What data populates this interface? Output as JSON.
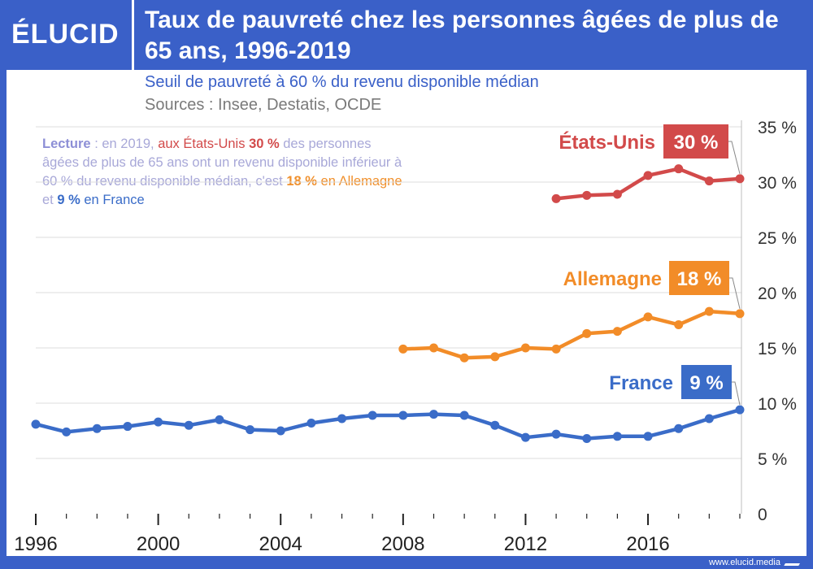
{
  "logo": {
    "text": "ÉLUCID"
  },
  "header": {
    "title": "Taux de pauvreté chez les personnes âgées de plus de 65 ans, 1996-2019"
  },
  "subtitle": "Seuil de pauvreté à 60 % du revenu disponible médian",
  "sources": "Sources : Insee, Destatis, OCDE",
  "reading_note": {
    "lead": "Lecture",
    "part1": " : en 2019, ",
    "us_text": "aux États-Unis ",
    "us_value": "30 %",
    "part2": " des personnes âgées de plus de 65 ans ont un revenu disponible inférieur à 60 % du revenu disponible médian, c'est ",
    "de_value": "18 %",
    "de_text": " en Allemagne",
    "part3": " et ",
    "fr_value": "9 %",
    "fr_text": " en France"
  },
  "footer": {
    "url": "www.elucid.media"
  },
  "colors": {
    "brand": "#3a60c8",
    "us": "#d24a4a",
    "de": "#f28c28",
    "fr": "#3a6cc8",
    "grid": "#dcdcdc"
  },
  "chart_data": {
    "type": "line",
    "title": "Taux de pauvreté chez les personnes âgées de plus de 65 ans, 1996-2019",
    "xlabel": "",
    "ylabel": "",
    "xlim": [
      1996,
      2019
    ],
    "ylim": [
      0,
      35
    ],
    "x_ticks": [
      1996,
      2000,
      2004,
      2008,
      2012,
      2016
    ],
    "y_ticks": [
      0,
      5,
      10,
      15,
      20,
      25,
      30,
      35
    ],
    "y_tick_labels": [
      "0",
      "5 %",
      "10 %",
      "15 %",
      "20 %",
      "25 %",
      "30 %",
      "35 %"
    ],
    "series": [
      {
        "key": "us",
        "name": "États-Unis",
        "badge": "30 %",
        "x": [
          2013,
          2014,
          2015,
          2016,
          2017,
          2018,
          2019
        ],
        "values": [
          28.5,
          28.8,
          28.9,
          30.6,
          31.2,
          30.1,
          30.3
        ]
      },
      {
        "key": "de",
        "name": "Allemagne",
        "badge": "18 %",
        "x": [
          2008,
          2009,
          2010,
          2011,
          2012,
          2013,
          2014,
          2015,
          2016,
          2017,
          2018,
          2019
        ],
        "values": [
          14.9,
          15.0,
          14.1,
          14.2,
          15.0,
          14.9,
          16.3,
          16.5,
          17.8,
          17.1,
          18.3,
          18.1
        ]
      },
      {
        "key": "fr",
        "name": "France",
        "badge": "9 %",
        "x": [
          1996,
          1997,
          1998,
          1999,
          2000,
          2001,
          2002,
          2003,
          2004,
          2005,
          2006,
          2007,
          2008,
          2009,
          2010,
          2011,
          2012,
          2013,
          2014,
          2015,
          2016,
          2017,
          2018,
          2019
        ],
        "values": [
          8.1,
          7.4,
          7.7,
          7.9,
          8.3,
          8.0,
          8.5,
          7.6,
          7.5,
          8.2,
          8.6,
          8.9,
          8.9,
          9.0,
          8.9,
          8.0,
          6.9,
          7.2,
          6.8,
          7.0,
          7.0,
          7.7,
          8.6,
          9.4
        ]
      }
    ]
  }
}
